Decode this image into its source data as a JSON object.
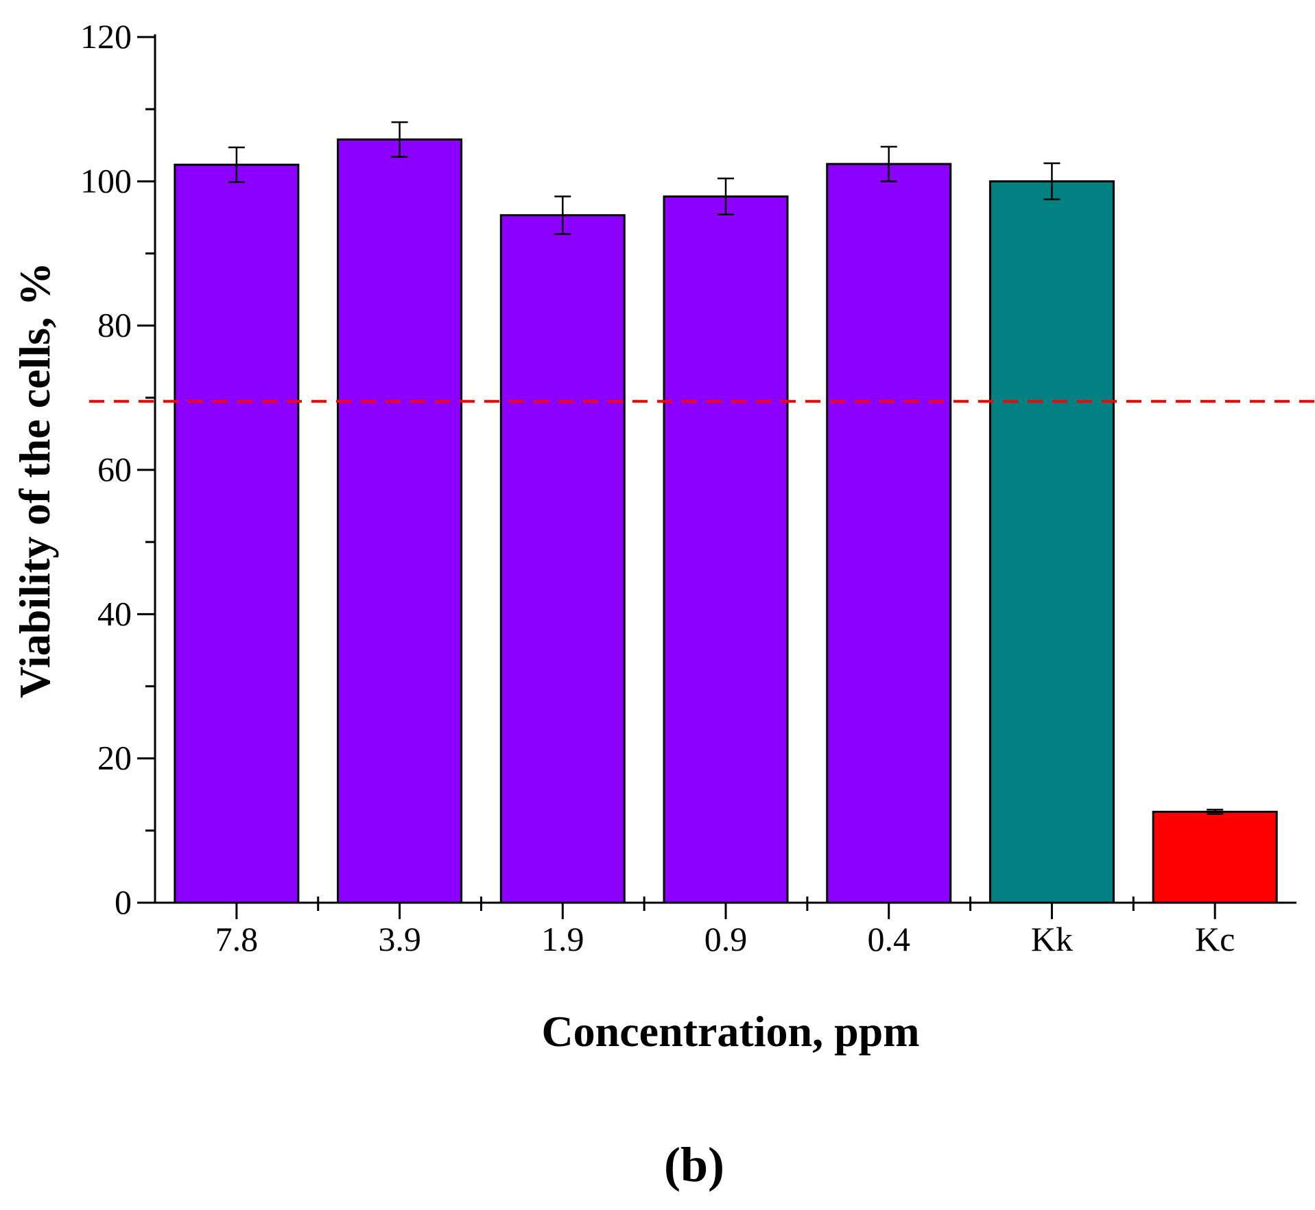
{
  "chart_data": {
    "type": "bar",
    "title": "",
    "xlabel": "Concentration, ppm",
    "ylabel": "Viability of the cells, %",
    "panel_label": "(b)",
    "categories": [
      "7.8",
      "3.9",
      "1.9",
      "0.9",
      "0.4",
      "Kk",
      "Kc"
    ],
    "values": [
      102.3,
      105.8,
      95.3,
      97.9,
      102.4,
      100.0,
      12.6
    ],
    "errors": [
      2.4,
      2.4,
      2.6,
      2.5,
      2.4,
      2.5,
      0.3
    ],
    "bar_colors": [
      "#8B00FF",
      "#8B00FF",
      "#8B00FF",
      "#8B00FF",
      "#8B00FF",
      "#008080",
      "#FF0000"
    ],
    "ylim": [
      0,
      120
    ],
    "yticks": [
      0,
      20,
      40,
      60,
      80,
      100,
      120
    ],
    "y_minor_step": 10,
    "reference_line": {
      "value": 69.5,
      "color": "#FF0000",
      "style": "dashed"
    },
    "grid": false,
    "legend": "none"
  }
}
